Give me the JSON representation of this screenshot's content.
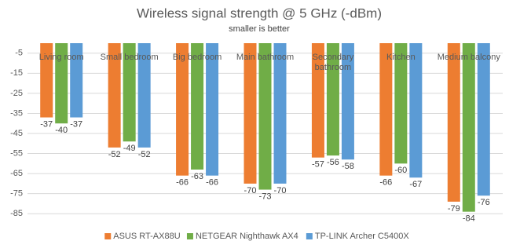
{
  "chart_data": {
    "type": "bar",
    "title": "Wireless signal strength @ 5 GHz (-dBm)",
    "subtitle": "smaller is better",
    "categories": [
      "Living room",
      "Small bedroom",
      "Big bedroom",
      "Main bathroom",
      "Secondary bathroom",
      "Kitchen",
      "Medium balcony"
    ],
    "series": [
      {
        "name": "ASUS RT-AX88U",
        "color": "#ed7d31",
        "values": [
          -37,
          -52,
          -66,
          -70,
          -57,
          -66,
          -79
        ]
      },
      {
        "name": "NETGEAR Nighthawk AX4",
        "color": "#70ad47",
        "values": [
          -40,
          -49,
          -63,
          -73,
          -56,
          -60,
          -84
        ]
      },
      {
        "name": "TP-LINK Archer C5400X",
        "color": "#5b9bd5",
        "values": [
          -37,
          -52,
          -66,
          -70,
          -58,
          -67,
          -76
        ]
      }
    ],
    "ylim": [
      -90,
      0
    ],
    "yticks": [
      -5,
      -15,
      -25,
      -35,
      -45,
      -55,
      -65,
      -75,
      -85
    ],
    "grid": true,
    "legend": "bottom"
  }
}
